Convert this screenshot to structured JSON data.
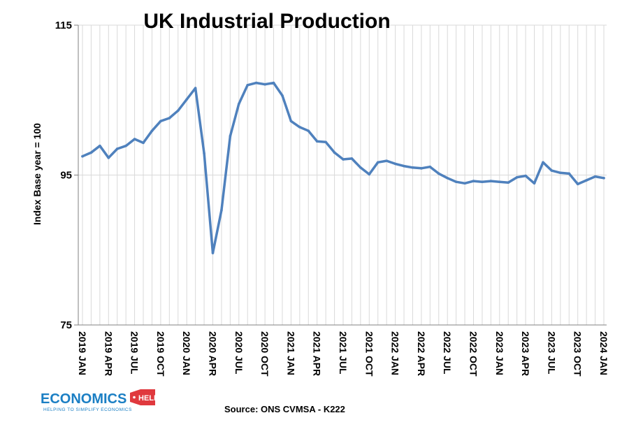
{
  "chart_data": {
    "type": "line",
    "title": "UK Industrial Production",
    "xlabel": "",
    "ylabel": "Index Base year = 100",
    "ylim": [
      75,
      115
    ],
    "yticks": [
      75,
      95,
      115
    ],
    "grid": "vertical",
    "color": "#4f81bd",
    "x_tick_labels": [
      "2019 JAN",
      "2019 APR",
      "2019 JUL",
      "2019 OCT",
      "2020 JAN",
      "2020 APR",
      "2020 JUL",
      "2020 OCT",
      "2021 JAN",
      "2021 APR",
      "2021 JUL",
      "2021 OCT",
      "2022 JAN",
      "2022 APR",
      "2022 JUL",
      "2022 OCT",
      "2023 JAN",
      "2023 APR",
      "2023 JUL",
      "2023 OCT",
      "2024 JAN"
    ],
    "x_tick_every": 3,
    "series": [
      {
        "values": [
          97.5,
          98.0,
          98.9,
          97.3,
          98.5,
          98.9,
          99.8,
          99.3,
          100.9,
          102.2,
          102.6,
          103.6,
          105.1,
          106.6,
          97.9,
          84.6,
          90.3,
          100.2,
          104.5,
          107.0,
          107.3,
          107.1,
          107.3,
          105.6,
          102.2,
          101.4,
          100.9,
          99.5,
          99.4,
          98.0,
          97.1,
          97.2,
          96.0,
          95.1,
          96.7,
          96.9,
          96.5,
          96.2,
          96.0,
          95.9,
          96.1,
          95.2,
          94.6,
          94.1,
          93.9,
          94.2,
          94.1,
          94.2,
          94.1,
          94.0,
          94.7,
          94.9,
          93.9,
          96.7,
          95.6,
          95.3,
          95.2,
          93.8,
          94.3,
          94.8,
          94.6
        ]
      }
    ]
  },
  "source": "Source: ONS CVMSA - K222",
  "logo": {
    "main_text": "ECONOMICS",
    "badge_text": "HELP",
    "tagline": "HELPING TO SIMPLIFY ECONOMICS",
    "brand_blue": "#1b7fc4",
    "badge_red": "#e0393e"
  }
}
